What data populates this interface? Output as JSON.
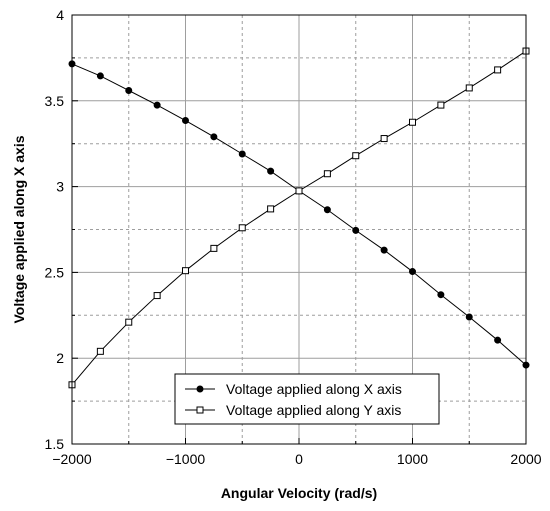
{
  "chart_data": {
    "type": "line",
    "title": "",
    "xlabel": "Angular Velocity (rad/s)",
    "ylabel": "Voltage applied along X axis",
    "xlim": [
      -2000,
      2000
    ],
    "ylim": [
      1.5,
      4
    ],
    "grid": true,
    "legend_position": "bottom-center",
    "x_ticks": [
      -2000,
      -1000,
      0,
      1000,
      2000
    ],
    "x_tick_labels": [
      "−2000",
      "−1000",
      "0",
      "1000",
      "2000"
    ],
    "y_ticks": [
      1.5,
      2,
      2.5,
      3,
      3.5,
      4
    ],
    "y_tick_labels": [
      "1.5",
      "2",
      "2.5",
      "3",
      "3.5",
      "4"
    ],
    "x": [
      -2000,
      -1750,
      -1500,
      -1250,
      -1000,
      -750,
      -500,
      -250,
      0,
      250,
      500,
      750,
      1000,
      1250,
      1500,
      1750,
      2000
    ],
    "series": [
      {
        "name": "Voltage applied along X axis",
        "marker": "filled-circle",
        "values": [
          3.715,
          3.645,
          3.56,
          3.475,
          3.385,
          3.29,
          3.19,
          3.09,
          2.975,
          2.865,
          2.745,
          2.63,
          2.505,
          2.37,
          2.24,
          2.105,
          1.96
        ]
      },
      {
        "name": "Voltage applied along Y axis",
        "marker": "open-square",
        "values": [
          1.845,
          2.04,
          2.21,
          2.365,
          2.51,
          2.64,
          2.76,
          2.87,
          2.975,
          3.075,
          3.18,
          3.28,
          3.375,
          3.475,
          3.575,
          3.68,
          3.79
        ]
      }
    ],
    "colors": {
      "line": "#000000",
      "grid_major": "#9e9e9e",
      "grid_minor": "#9e9e9e"
    }
  }
}
